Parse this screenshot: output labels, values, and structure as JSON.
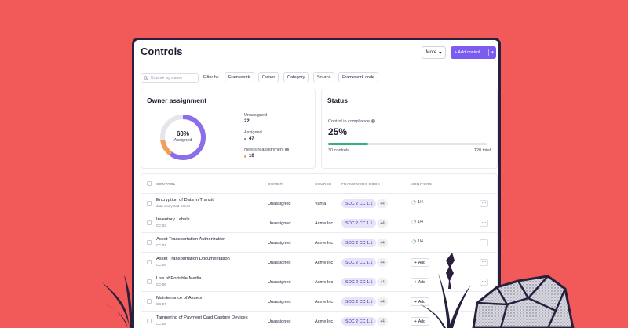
{
  "header": {
    "title": "Controls",
    "more_label": "More",
    "add_label": "+ Add control"
  },
  "filters": {
    "search_placeholder": "Search by name",
    "filter_by_label": "Filter by",
    "chips": [
      "Framework",
      "Owner",
      "Category",
      "Source",
      "Framework code"
    ]
  },
  "owner_assignment": {
    "title": "Owner assignment",
    "percent_label": "60%",
    "assigned_fraction": 0.6,
    "center_sub": "Assigned",
    "unassigned_label": "Unassigned",
    "unassigned_value": "22",
    "assigned_label": "Assigned",
    "assigned_value": "47",
    "needs_label": "Needs reassignment",
    "needs_value": "10",
    "colors": {
      "assigned": "#8b6ee8",
      "needs": "#f0a05a",
      "track": "#e6e4ec"
    }
  },
  "status": {
    "title": "Status",
    "compliance_label": "Control in compliance",
    "compliance_pct": "25%",
    "compliance_fraction": 0.25,
    "left_label": "30 controls",
    "right_label": "120 total"
  },
  "table": {
    "headers": {
      "control": "CONTROL",
      "owner": "OWNER",
      "source": "SOURCE",
      "framework": "FRAMEWORK CODE",
      "monitors": "MONITORS"
    },
    "rows": [
      {
        "name": "Encryption of Data in Transit",
        "code": "data-encrypted-transit",
        "owner": "Unassigned",
        "source": "Vanta",
        "framework": "SOC 2 CC 1.1",
        "extra": "+4",
        "monitor": "1/4",
        "has_monitor": true
      },
      {
        "name": "Inventory Labels",
        "code": "CC-03",
        "owner": "Unassigned",
        "source": "Acme Inc",
        "framework": "SOC 2 CC 1.1",
        "extra": "+4",
        "monitor": "1/4",
        "has_monitor": true
      },
      {
        "name": "Asset Transportation Authorization",
        "code": "CC-04",
        "owner": "Unassigned",
        "source": "Acme Inc",
        "framework": "SOC 2 CC 1.1",
        "extra": "+4",
        "monitor": "1/4",
        "has_monitor": true
      },
      {
        "name": "Asset Transportation Documentation",
        "code": "CC-05",
        "owner": "Unassigned",
        "source": "Acme Inc",
        "framework": "SOC 2 CC 1.1",
        "extra": "+4",
        "monitor": "Add",
        "has_monitor": false
      },
      {
        "name": "Use of Portable Media",
        "code": "CC-06",
        "owner": "Unassigned",
        "source": "Acme Inc",
        "framework": "SOC 2 CC 1.1",
        "extra": "+4",
        "monitor": "Add",
        "has_monitor": false
      },
      {
        "name": "Maintenance of Assets",
        "code": "CC-07",
        "owner": "Unassigned",
        "source": "Acme Inc",
        "framework": "SOC 2 CC 1.1",
        "extra": "+4",
        "monitor": "Add",
        "has_monitor": false
      },
      {
        "name": "Tampering of Payment Card Capture Devices",
        "code": "CC-08",
        "owner": "Unassigned",
        "source": "Acme Inc",
        "framework": "SOC 2 CC 1.1",
        "extra": "+4",
        "monitor": "Add",
        "has_monitor": false
      }
    ],
    "more_glyph": "...",
    "add_glyph": "+"
  }
}
